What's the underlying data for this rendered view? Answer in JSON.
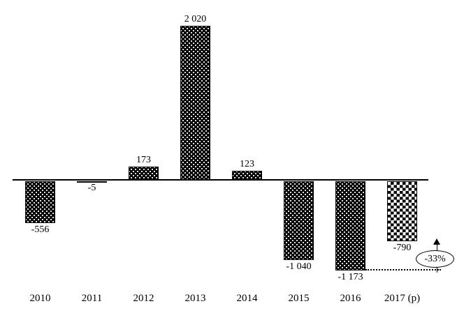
{
  "chart_data": {
    "type": "bar",
    "title": "",
    "xlabel": "",
    "ylabel": "",
    "categories": [
      "2010",
      "2011",
      "2012",
      "2013",
      "2014",
      "2015",
      "2016",
      "2017 (p)"
    ],
    "values": [
      -556,
      -5,
      173,
      2020,
      123,
      -1040,
      -1173,
      -790
    ],
    "value_labels": [
      "-556",
      "-5",
      "173",
      "2 020",
      "123",
      "-1 040",
      "-1 173",
      "-790"
    ],
    "bar_patterns": [
      "dark-dotted",
      "dark-dotted",
      "dark-dotted",
      "dark-dotted",
      "dark-dotted",
      "dark-dotted",
      "dark-dotted",
      "checkerboard"
    ],
    "ylim": [
      -1300,
      2100
    ],
    "grid": false,
    "legend": "none",
    "baseline": 0,
    "annotation": {
      "text": "-33%",
      "shape": "ellipse",
      "arrow": "up",
      "connector": "dotted line from bottom of 2016 bar to callout"
    },
    "colors": {
      "bar_fill": "#000000",
      "bar_dot": "#ffffff",
      "axis": "#000000",
      "background": "#ffffff",
      "text": "#000000"
    }
  }
}
